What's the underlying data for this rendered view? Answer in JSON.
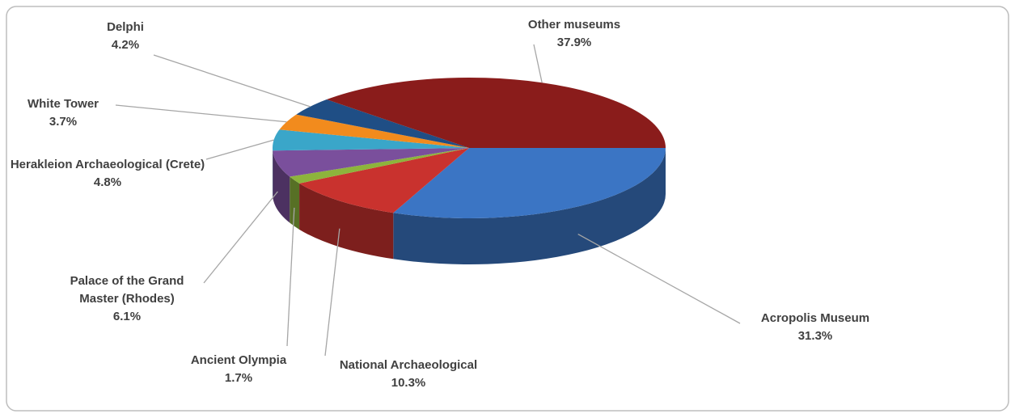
{
  "chart_data": {
    "type": "pie",
    "categories": [
      "Acropolis Museum",
      "National Archaeological",
      "Ancient Olympia",
      "Palace of the Grand Master (Rhodes)",
      "Herakleion Archaeological (Crete)",
      "White Tower",
      "Delphi",
      "Other museums"
    ],
    "values": [
      31.3,
      10.3,
      1.7,
      6.1,
      4.8,
      3.7,
      4.2,
      37.9
    ],
    "value_labels": [
      "31.3%",
      "10.3%",
      "1.7%",
      "6.1%",
      "4.8%",
      "3.7%",
      "4.2%",
      "37.9%"
    ],
    "colors": [
      "#3b75c4",
      "#c9322e",
      "#8db43c",
      "#7a4f9c",
      "#3aa6c9",
      "#f28b1d",
      "#1f4e85",
      "#8a1c1b"
    ]
  }
}
